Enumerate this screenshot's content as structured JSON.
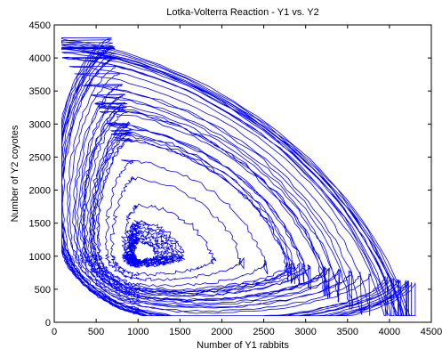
{
  "chart_data": {
    "type": "line",
    "title": "Lotka-Volterra Reaction - Y1 vs. Y2",
    "xlabel": "Number of Y1 rabbits",
    "ylabel": "Number of Y2 coyotes",
    "xlim": [
      0,
      4500
    ],
    "ylim": [
      0,
      4500
    ],
    "x_ticks": [
      0,
      500,
      1000,
      1500,
      2000,
      2500,
      3000,
      3500,
      4000,
      4500
    ],
    "y_ticks": [
      0,
      500,
      1000,
      1500,
      2000,
      2500,
      3000,
      3500,
      4000,
      4500
    ],
    "grid": false,
    "legend": "none",
    "line_color": "#0000ff",
    "orbits_note": "stochastic phase-plane trajectory spiraling around the equilibrium near (1000, 1000)",
    "equilibrium": {
      "x": 1000,
      "y": 1000
    },
    "series": [
      {
        "x": [
          130,
          400,
          1000,
          2000,
          3200,
          4200,
          4330,
          3800,
          3000,
          2200,
          1500,
          1000,
          800,
          400,
          200,
          130
        ],
        "y": [
          1200,
          3000,
          4200,
          4350,
          3500,
          1500,
          600,
          350,
          250,
          180,
          150,
          140,
          160,
          250,
          500,
          1200
        ]
      }
    ]
  }
}
